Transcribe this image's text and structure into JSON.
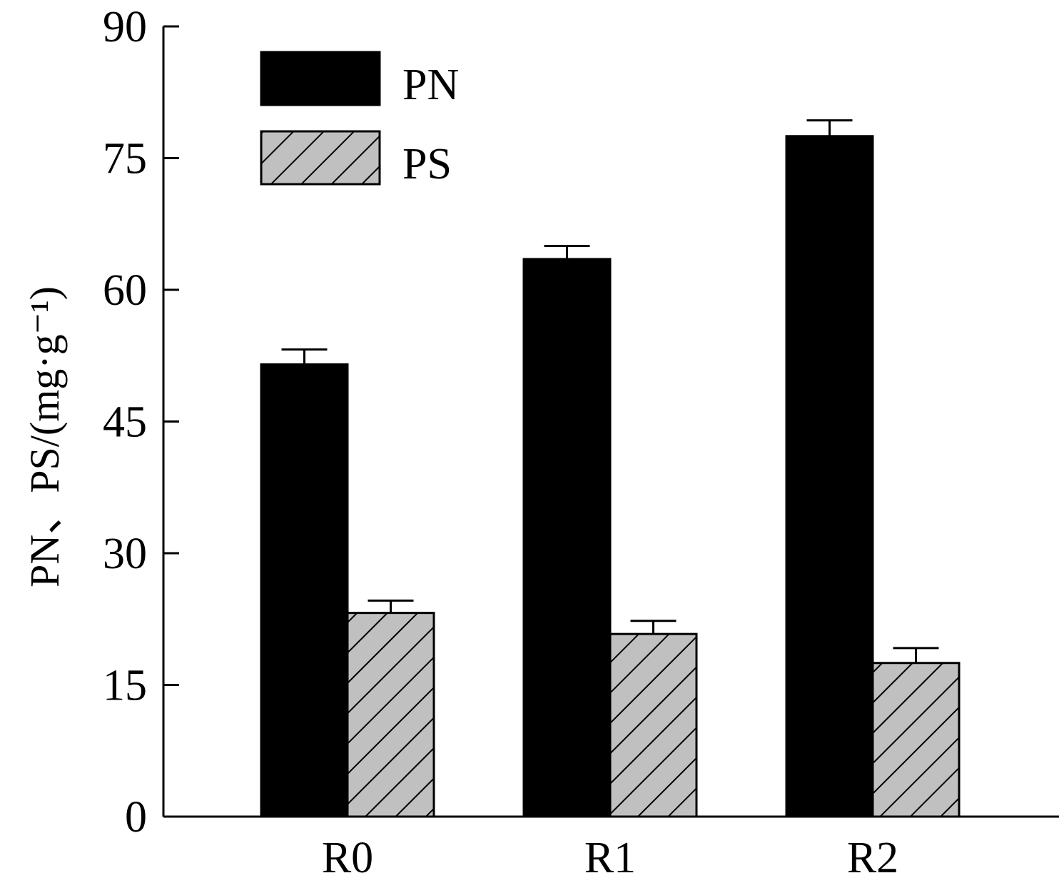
{
  "chart_data": {
    "type": "bar",
    "title": "",
    "xlabel": "",
    "ylabel": "PN、PS/(mg·g⁻¹)",
    "ylim": [
      0,
      90
    ],
    "yticks": [
      0,
      15,
      30,
      45,
      60,
      75,
      90
    ],
    "yticks_labels": [
      "0",
      "15",
      "30",
      "45",
      "60",
      "75",
      "90"
    ],
    "categories": [
      "R0",
      "R1",
      "R2"
    ],
    "series": [
      {
        "name": "PN",
        "values": [
          51.5,
          63.5,
          77.5
        ],
        "errors": [
          1.7,
          1.5,
          1.8
        ],
        "color": "#000000",
        "pattern": "solid"
      },
      {
        "name": "PS",
        "values": [
          23.2,
          20.8,
          17.5
        ],
        "errors": [
          1.4,
          1.5,
          1.7
        ],
        "color": "#c0c0c0",
        "pattern": "diagonal-hatch"
      }
    ],
    "legend_position": "top-left",
    "grid": false
  }
}
